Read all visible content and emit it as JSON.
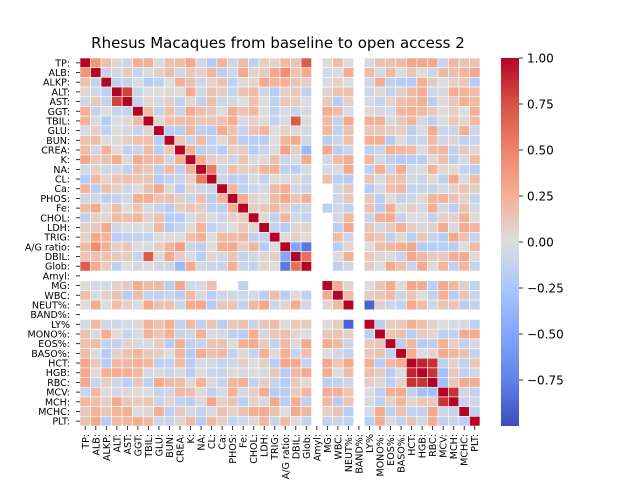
{
  "chart_data": {
    "type": "heatmap",
    "title": "Rhesus Macaques from baseline to open access 2",
    "xlabel": "",
    "ylabel": "",
    "labels": [
      "TP:",
      "ALB:",
      "ALKP:",
      "ALT:",
      "AST:",
      "GGT:",
      "TBIL:",
      "GLU:",
      "BUN:",
      "CREA:",
      "K:",
      "NA:",
      "CL:",
      "Ca:",
      "PHOS:",
      "Fe:",
      "CHOL:",
      "LDH:",
      "TRIG:",
      "A/G ratio:",
      "DBIL:",
      "Glob:",
      "Amyl:",
      "MG:",
      "WBC:",
      "NEUT%:",
      "BAND%:",
      "LY%",
      "MONO%:",
      "EOS%:",
      "BASO%:",
      "HCT:",
      "HGB:",
      "RBC:",
      "MCV:",
      "MCH:",
      "MCHC:",
      "PLT:"
    ],
    "value_range": [
      -1.0,
      1.0
    ],
    "colorbar_ticks": [
      "1.00",
      "0.75",
      "0.50",
      "0.25",
      "0.00",
      "−0.25",
      "−0.50",
      "−0.75"
    ],
    "colorbar_tick_values": [
      1.0,
      0.75,
      0.5,
      0.25,
      0.0,
      -0.25,
      -0.5,
      -0.75
    ],
    "colormap": "coolwarm",
    "colors": {
      "low": "#3b4cc0",
      "mid": "#dddddd",
      "high": "#b40426"
    },
    "diagonal": 1.0,
    "missing_labels": [
      "Amyl:",
      "BAND%:"
    ],
    "missing_cells": [
      [
        "MG:",
        "Ca:"
      ],
      [
        "MG:",
        "PHOS:"
      ],
      [
        "MG:",
        "CHOL:"
      ],
      [
        "MG:",
        "LDH:"
      ],
      [
        "MG:",
        "TRIG:"
      ],
      [
        "MG:",
        "A/G ratio:"
      ],
      [
        "MG:",
        "DBIL:"
      ],
      [
        "MG:",
        "Glob:"
      ],
      [
        "Ca:",
        "MG:"
      ],
      [
        "PHOS:",
        "MG:"
      ]
    ],
    "highlighted_correlations": [
      {
        "row": "TP:",
        "col": "Glob:",
        "value": 0.7
      },
      {
        "row": "TP:",
        "col": "ALB:",
        "value": 0.4
      },
      {
        "row": "ALT:",
        "col": "AST:",
        "value": 0.8
      },
      {
        "row": "TBIL:",
        "col": "DBIL:",
        "value": 0.7
      },
      {
        "row": "A/G ratio:",
        "col": "DBIL:",
        "value": -0.5
      },
      {
        "row": "A/G ratio:",
        "col": "Glob:",
        "value": -0.8
      },
      {
        "row": "A/G ratio:",
        "col": "ALB:",
        "value": 0.45
      },
      {
        "row": "DBIL:",
        "col": "Glob:",
        "value": 0.6
      },
      {
        "row": "NEUT%:",
        "col": "LY%",
        "value": -0.9
      },
      {
        "row": "HCT:",
        "col": "HGB:",
        "value": 0.9
      },
      {
        "row": "HCT:",
        "col": "RBC:",
        "value": 0.85
      },
      {
        "row": "HGB:",
        "col": "RBC:",
        "value": 0.85
      },
      {
        "row": "MCV:",
        "col": "MCH:",
        "value": 0.85
      },
      {
        "row": "CL:",
        "col": "NA:",
        "value": 0.55
      },
      {
        "row": "K:",
        "col": "TP:",
        "value": 0.3
      },
      {
        "row": "HCT:",
        "col": "TP:",
        "value": 0.3
      },
      {
        "row": "HGB:",
        "col": "TP:",
        "value": 0.3
      },
      {
        "row": "RBC:",
        "col": "TP:",
        "value": 0.3
      },
      {
        "row": "CREA:",
        "col": "Glob:",
        "value": -0.35
      },
      {
        "row": "CREA:",
        "col": "A/G ratio:",
        "value": 0.35
      },
      {
        "row": "HGB:",
        "col": "MCV:",
        "value": -0.3
      },
      {
        "row": "RBC:",
        "col": "MCV:",
        "value": -0.3
      },
      {
        "row": "GLU:",
        "col": "CL:",
        "value": -0.2
      },
      {
        "row": "TP:",
        "col": "CL:",
        "value": -0.2
      }
    ]
  }
}
